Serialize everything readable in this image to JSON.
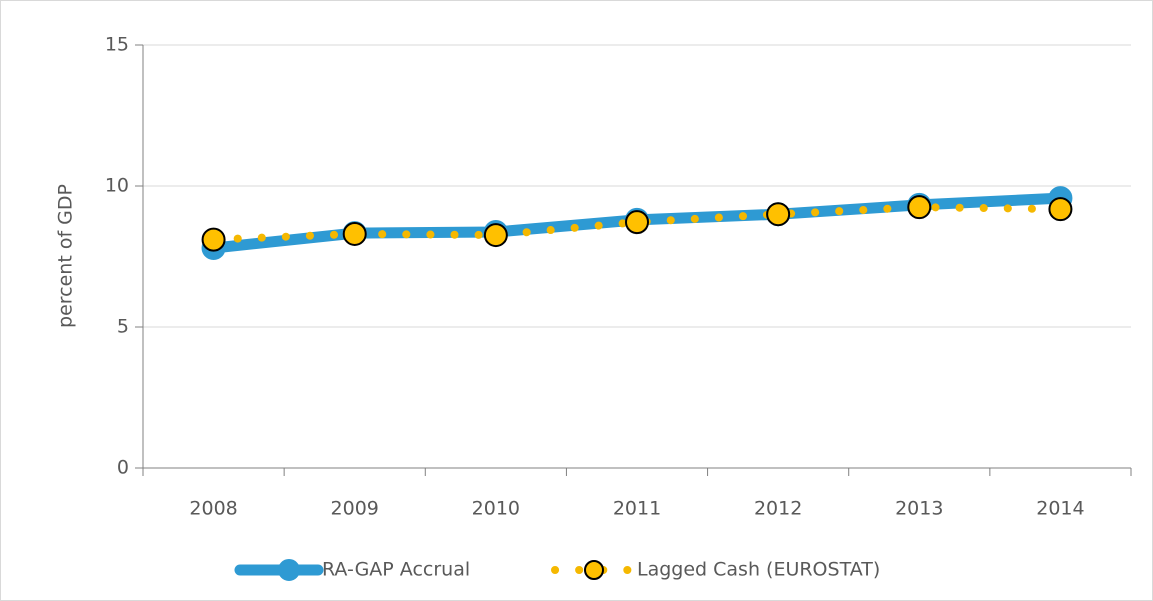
{
  "chart_data": {
    "type": "line",
    "y_label": "percent of GDP",
    "categories": [
      "2008",
      "2009",
      "2010",
      "2011",
      "2012",
      "2013",
      "2014"
    ],
    "series": [
      {
        "name": "RA-GAP Accrual",
        "color": "#2e9ad3",
        "values": [
          7.8,
          8.33,
          8.37,
          8.8,
          9.0,
          9.33,
          9.57
        ]
      },
      {
        "name": "Lagged Cash (EUROSTAT)",
        "color": "#f5b800",
        "values": [
          8.1,
          8.3,
          8.26,
          8.72,
          9.0,
          9.25,
          9.18
        ]
      }
    ],
    "ylim": [
      0,
      15
    ],
    "yticks": [
      0,
      5,
      10,
      15
    ],
    "grid": true,
    "legend": "bottom"
  }
}
